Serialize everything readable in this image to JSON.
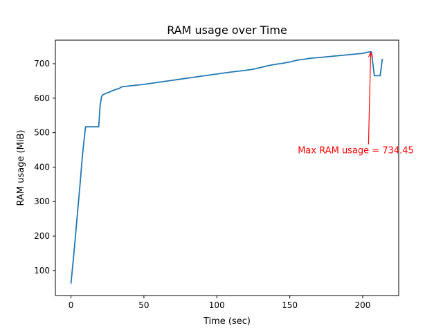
{
  "chart_data": {
    "type": "line",
    "title": "RAM usage over Time",
    "xlabel": "Time (sec)",
    "ylabel": "RAM usage (MiB)",
    "xlim": [
      -10.7,
      224.7
    ],
    "ylim": [
      27.4,
      768.3
    ],
    "xticks": [
      0,
      50,
      100,
      150,
      200
    ],
    "yticks": [
      100,
      200,
      300,
      400,
      500,
      600,
      700
    ],
    "grid": false,
    "line_color": "#1f77b4",
    "annotation_color": "#ff0000",
    "annotation": {
      "text": "Max RAM usage = 734.45",
      "point": [
        205.5,
        734.45
      ],
      "text_anchor_point": [
        155.5,
        440.0
      ]
    },
    "series": [
      {
        "x": [
          0,
          2,
          4,
          6,
          8,
          10,
          11,
          19,
          20,
          21,
          22,
          24,
          26,
          28,
          30,
          31,
          33,
          34,
          35,
          50,
          70,
          90,
          110,
          120,
          125,
          130,
          135,
          140,
          145,
          150,
          155,
          160,
          165,
          170,
          175,
          180,
          185,
          190,
          195,
          200,
          203,
          205,
          206,
          208,
          212,
          213.5
        ],
        "y": [
          62,
          150,
          245,
          340,
          440,
          517,
          517,
          517,
          580,
          605,
          610,
          614,
          617,
          621,
          624,
          626,
          628,
          631,
          633,
          640,
          652,
          664,
          676,
          681,
          684,
          689,
          694,
          698,
          701,
          705,
          710,
          713,
          716,
          718,
          720,
          722,
          724,
          726,
          728,
          730,
          733,
          734.45,
          734.45,
          665,
          665,
          714
        ]
      }
    ]
  }
}
